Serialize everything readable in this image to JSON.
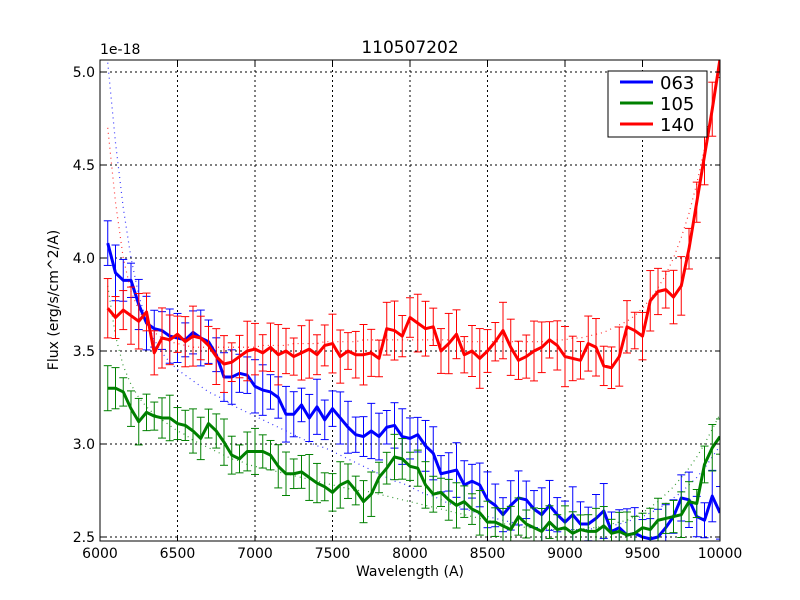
{
  "chart_data": {
    "type": "line",
    "title": "110507202",
    "xlabel": "Wavelength (A)",
    "ylabel": "Flux (erg/s/cm^2/A)",
    "y_offset_label": "1e-18",
    "xlim": [
      6000,
      10000
    ],
    "ylim": [
      2.48,
      5.07
    ],
    "xticks": [
      "6000",
      "6500",
      "7000",
      "7500",
      "8000",
      "8500",
      "9000",
      "9500",
      "10000"
    ],
    "yticks": [
      "2.5",
      "3.0",
      "3.5",
      "4.0",
      "4.5",
      "5.0"
    ],
    "grid": true,
    "legend_position": "upper right",
    "x": [
      6050,
      6100,
      6150,
      6200,
      6250,
      6300,
      6350,
      6400,
      6450,
      6500,
      6550,
      6600,
      6650,
      6700,
      6750,
      6800,
      6850,
      6900,
      6950,
      7000,
      7050,
      7100,
      7150,
      7200,
      7250,
      7300,
      7350,
      7400,
      7450,
      7500,
      7550,
      7600,
      7650,
      7700,
      7750,
      7800,
      7850,
      7900,
      7950,
      8000,
      8050,
      8100,
      8150,
      8200,
      8250,
      8300,
      8350,
      8400,
      8450,
      8500,
      8550,
      8600,
      8650,
      8700,
      8750,
      8800,
      8850,
      8900,
      8950,
      9000,
      9050,
      9100,
      9150,
      9200,
      9250,
      9300,
      9350,
      9400,
      9450,
      9500,
      9550,
      9600,
      9650,
      9700,
      9750,
      9800,
      9850,
      9900,
      9950,
      10000
    ],
    "series": [
      {
        "name": "063",
        "color": "#0000ff",
        "values": [
          4.08,
          3.92,
          3.88,
          3.88,
          3.75,
          3.65,
          3.62,
          3.61,
          3.58,
          3.57,
          3.56,
          3.6,
          3.57,
          3.55,
          3.48,
          3.36,
          3.36,
          3.38,
          3.37,
          3.31,
          3.29,
          3.28,
          3.25,
          3.16,
          3.16,
          3.21,
          3.14,
          3.2,
          3.13,
          3.19,
          3.14,
          3.09,
          3.05,
          3.04,
          3.07,
          3.04,
          3.09,
          3.1,
          3.04,
          3.03,
          3.05,
          2.99,
          2.95,
          2.84,
          2.85,
          2.86,
          2.78,
          2.8,
          2.78,
          2.7,
          2.67,
          2.62,
          2.67,
          2.71,
          2.7,
          2.65,
          2.62,
          2.67,
          2.62,
          2.58,
          2.62,
          2.57,
          2.57,
          2.6,
          2.64,
          2.53,
          2.55,
          2.51,
          2.52,
          2.5,
          2.49,
          2.5,
          2.55,
          2.61,
          2.71,
          2.7,
          2.61,
          2.59,
          2.72,
          2.63
        ],
        "fit_values": [
          5.05,
          4.62,
          4.27,
          4.0,
          3.8,
          3.66,
          3.56,
          3.49,
          3.44,
          3.4,
          3.37,
          3.34,
          3.31,
          3.28,
          3.26,
          3.24,
          3.21,
          3.19,
          3.17,
          3.15,
          3.13,
          3.11,
          3.09,
          3.07,
          3.05,
          3.03,
          3.01,
          2.99,
          2.98,
          2.96,
          2.94,
          2.92,
          2.9,
          2.88,
          2.86,
          2.84,
          2.82,
          2.8,
          2.79,
          2.77,
          2.75,
          2.73,
          2.72,
          2.7,
          2.68,
          2.67,
          2.65,
          2.64,
          2.62,
          2.61,
          2.6,
          2.59,
          2.58,
          2.57,
          2.56,
          2.55,
          2.55,
          2.54,
          2.54,
          2.54,
          2.54,
          2.54,
          2.54,
          2.55,
          2.55,
          2.56,
          2.57,
          2.58,
          2.6,
          2.61,
          2.63,
          2.65,
          2.68,
          2.71,
          2.74,
          2.78,
          2.82,
          2.87,
          2.93,
          2.99
        ],
        "err": 0.12
      },
      {
        "name": "105",
        "color": "#008000",
        "values": [
          3.3,
          3.3,
          3.28,
          3.19,
          3.12,
          3.17,
          3.15,
          3.14,
          3.14,
          3.11,
          3.1,
          3.07,
          3.03,
          3.11,
          3.07,
          3.01,
          2.94,
          2.92,
          2.96,
          2.96,
          2.96,
          2.94,
          2.88,
          2.84,
          2.84,
          2.85,
          2.82,
          2.79,
          2.77,
          2.74,
          2.78,
          2.8,
          2.75,
          2.69,
          2.73,
          2.82,
          2.87,
          2.93,
          2.92,
          2.88,
          2.87,
          2.78,
          2.73,
          2.74,
          2.7,
          2.67,
          2.69,
          2.65,
          2.63,
          2.58,
          2.58,
          2.56,
          2.54,
          2.61,
          2.57,
          2.55,
          2.53,
          2.58,
          2.54,
          2.55,
          2.52,
          2.54,
          2.53,
          2.53,
          2.56,
          2.52,
          2.53,
          2.51,
          2.52,
          2.55,
          2.54,
          2.59,
          2.6,
          2.61,
          2.62,
          2.69,
          2.68,
          2.89,
          2.98,
          3.04
        ],
        "fit_values": [
          3.85,
          3.58,
          3.42,
          3.32,
          3.25,
          3.2,
          3.16,
          3.13,
          3.1,
          3.07,
          3.05,
          3.02,
          3.0,
          2.98,
          2.96,
          2.94,
          2.92,
          2.91,
          2.89,
          2.88,
          2.87,
          2.86,
          2.85,
          2.84,
          2.83,
          2.82,
          2.81,
          2.8,
          2.79,
          2.78,
          2.77,
          2.76,
          2.75,
          2.75,
          2.74,
          2.73,
          2.72,
          2.71,
          2.7,
          2.69,
          2.68,
          2.67,
          2.66,
          2.65,
          2.64,
          2.63,
          2.62,
          2.61,
          2.6,
          2.59,
          2.58,
          2.57,
          2.57,
          2.56,
          2.55,
          2.55,
          2.54,
          2.54,
          2.54,
          2.54,
          2.54,
          2.54,
          2.55,
          2.55,
          2.56,
          2.57,
          2.58,
          2.59,
          2.61,
          2.63,
          2.66,
          2.69,
          2.73,
          2.77,
          2.82,
          2.87,
          2.93,
          3.0,
          3.08,
          3.16
        ],
        "err": 0.1
      },
      {
        "name": "140",
        "color": "#ff0000",
        "values": [
          3.73,
          3.68,
          3.72,
          3.69,
          3.66,
          3.71,
          3.49,
          3.57,
          3.56,
          3.59,
          3.55,
          3.58,
          3.57,
          3.53,
          3.47,
          3.43,
          3.44,
          3.47,
          3.5,
          3.51,
          3.49,
          3.52,
          3.48,
          3.5,
          3.47,
          3.49,
          3.51,
          3.48,
          3.53,
          3.54,
          3.47,
          3.5,
          3.48,
          3.48,
          3.49,
          3.46,
          3.62,
          3.61,
          3.58,
          3.68,
          3.65,
          3.62,
          3.63,
          3.5,
          3.54,
          3.59,
          3.48,
          3.5,
          3.46,
          3.5,
          3.55,
          3.61,
          3.52,
          3.45,
          3.47,
          3.5,
          3.52,
          3.56,
          3.53,
          3.47,
          3.46,
          3.45,
          3.54,
          3.52,
          3.42,
          3.41,
          3.47,
          3.63,
          3.61,
          3.58,
          3.77,
          3.82,
          3.83,
          3.79,
          3.85,
          4.05,
          4.3,
          4.55,
          4.8,
          5.07
        ],
        "fit_values": [
          4.7,
          4.3,
          4.0,
          3.82,
          3.72,
          3.65,
          3.6,
          3.57,
          3.55,
          3.54,
          3.53,
          3.52,
          3.52,
          3.52,
          3.52,
          3.52,
          3.52,
          3.52,
          3.52,
          3.52,
          3.53,
          3.53,
          3.53,
          3.53,
          3.54,
          3.54,
          3.54,
          3.54,
          3.55,
          3.55,
          3.55,
          3.55,
          3.55,
          3.56,
          3.56,
          3.56,
          3.56,
          3.56,
          3.56,
          3.56,
          3.56,
          3.56,
          3.56,
          3.56,
          3.56,
          3.56,
          3.55,
          3.55,
          3.55,
          3.55,
          3.55,
          3.55,
          3.55,
          3.55,
          3.55,
          3.55,
          3.55,
          3.55,
          3.56,
          3.56,
          3.57,
          3.57,
          3.58,
          3.59,
          3.6,
          3.62,
          3.64,
          3.66,
          3.69,
          3.73,
          3.78,
          3.84,
          3.91,
          4.0,
          4.11,
          4.24,
          4.4,
          4.59,
          4.81,
          5.07
        ],
        "err": 0.13
      }
    ]
  },
  "figure": {
    "title": "110507202",
    "xlabel": "Wavelength (A)",
    "ylabel": "Flux (erg/s/cm^2/A)",
    "offset_label": "1e-18",
    "legend": [
      {
        "label": "063",
        "color": "#0000ff"
      },
      {
        "label": "105",
        "color": "#008000"
      },
      {
        "label": "140",
        "color": "#ff0000"
      }
    ]
  }
}
